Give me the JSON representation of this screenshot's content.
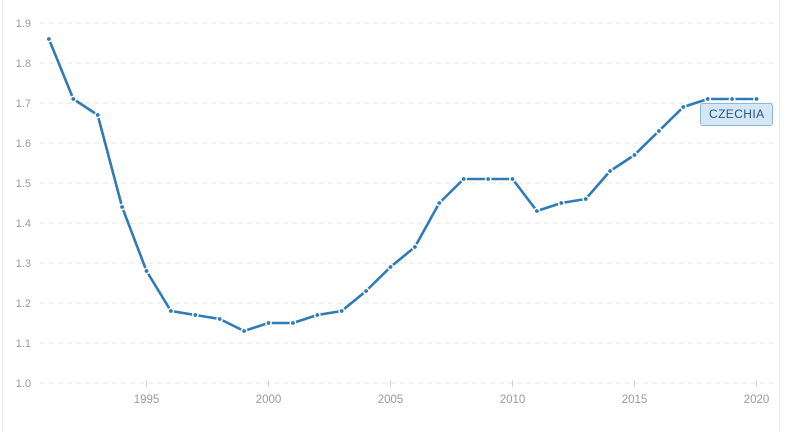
{
  "chart_data": {
    "type": "line",
    "title": "",
    "xlabel": "",
    "ylabel": "",
    "x": [
      1991,
      1992,
      1993,
      1994,
      1995,
      1996,
      1997,
      1998,
      1999,
      2000,
      2001,
      2002,
      2003,
      2004,
      2005,
      2006,
      2007,
      2008,
      2009,
      2010,
      2011,
      2012,
      2013,
      2014,
      2015,
      2016,
      2017,
      2018,
      2019,
      2020
    ],
    "series": [
      {
        "name": "CZECHIA",
        "values": [
          1.86,
          1.71,
          1.67,
          1.44,
          1.28,
          1.18,
          1.17,
          1.16,
          1.13,
          1.15,
          1.15,
          1.17,
          1.18,
          1.23,
          1.29,
          1.34,
          1.45,
          1.51,
          1.51,
          1.51,
          1.43,
          1.45,
          1.46,
          1.53,
          1.57,
          1.63,
          1.69,
          1.71,
          1.71,
          1.71
        ]
      }
    ],
    "ylim": [
      1.0,
      1.9
    ],
    "y_ticks": [
      1.9,
      1.8,
      1.7,
      1.6,
      1.5,
      1.4,
      1.3,
      1.2,
      1.1,
      1.0
    ],
    "x_ticks": [
      1995,
      2000,
      2005,
      2010,
      2015,
      2020
    ],
    "grid": "horizontal-dashed",
    "legend_position": "inline-badge-at-line-end",
    "marker": "dot-with-white-halo"
  },
  "badge": {
    "label": "CZECHIA"
  },
  "colors": {
    "line": "#2e7bb8",
    "marker": "#2e7bb8",
    "grid": "#e4e4e4",
    "tick": "#d2d2d2",
    "axis_label": "#9b9b9b",
    "badge_bg": "#d5e7f5",
    "badge_border": "#8fb9d9",
    "badge_text": "#20587f",
    "background": "#ffffff",
    "frame_edge": "#e9e9e9"
  }
}
